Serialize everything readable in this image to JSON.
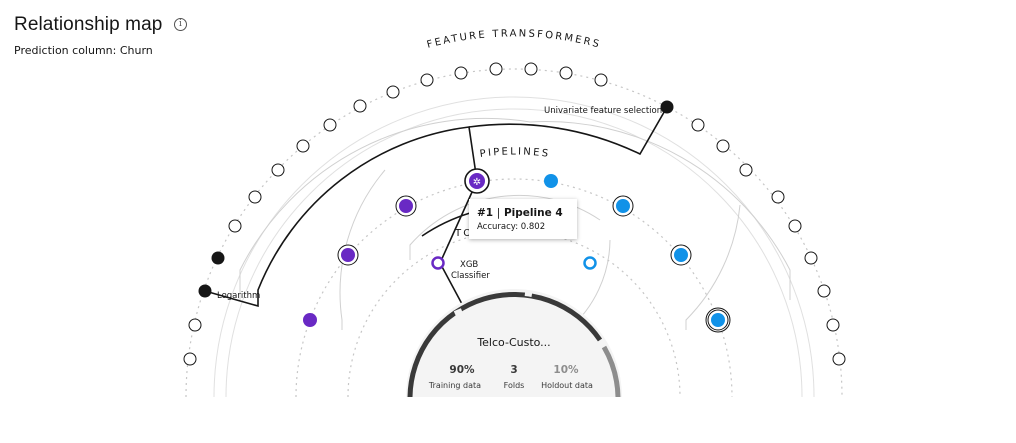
{
  "header": {
    "title": "Relationship map",
    "info_icon": "info-icon",
    "prediction_label": "Prediction column:",
    "prediction_value": "Churn"
  },
  "rings": {
    "feature_transformers_label": "FEATURE TRANSFORMERS",
    "pipelines_label": "PIPELINES",
    "top_label": "TO"
  },
  "transformer_labels": {
    "univariate": "Univariate feature selection",
    "logarithm": "Logarithm"
  },
  "estimator": {
    "line1": "XGB",
    "line2": "Classifier"
  },
  "tooltip": {
    "rank": "#1",
    "separator": "|",
    "name": "Pipeline 4",
    "accuracy_label": "Accuracy:",
    "accuracy_value": "0.802"
  },
  "dataset": {
    "name": "Telco-Custo...",
    "stats": [
      {
        "value": "90%",
        "label": "Training data"
      },
      {
        "value": "3",
        "label": "Folds"
      },
      {
        "value": "10%",
        "label": "Holdout data"
      }
    ]
  },
  "colors": {
    "purple": "#6929c4",
    "blue": "#1192e8",
    "dark": "#161616",
    "ring_gray": "#c6c6c6",
    "center_fill": "#f4f4f4"
  }
}
